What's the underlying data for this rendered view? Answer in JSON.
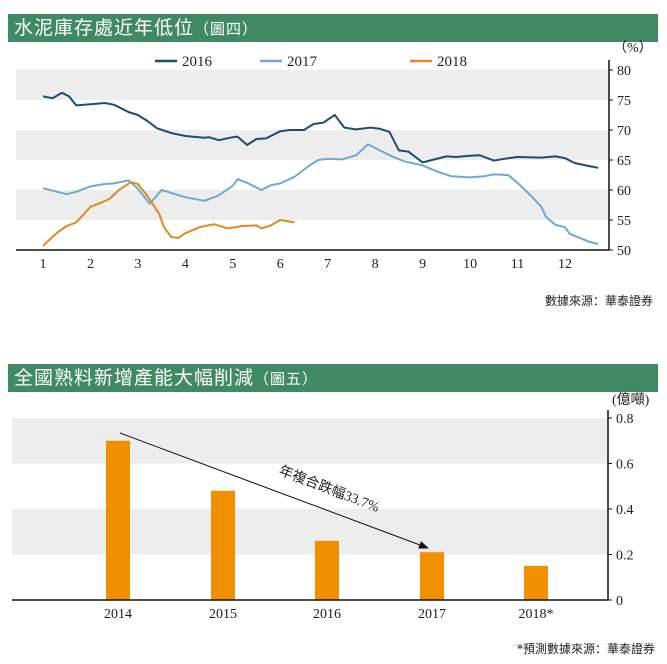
{
  "charts": {
    "inventory": {
      "title": "水泥庫存處近年低位",
      "figure_label": "圖四",
      "unit_label": "（%）",
      "source": "數據來源：華泰證券"
    },
    "capacity": {
      "title": "全國熟料新增產能大幅削減",
      "figure_label": "圖五",
      "unit_label": "(億噸)",
      "annotation": "年複合跌幅33.7%",
      "source": "*預測數據來源：華泰證券"
    }
  },
  "chart_data": [
    {
      "type": "line",
      "title": "水泥庫存處近年低位（圖四）",
      "xlabel": "",
      "ylabel": "（%）",
      "xlim": [
        0.45,
        12.9
      ],
      "ylim": [
        50,
        80
      ],
      "x_ticks": [
        1,
        2,
        3,
        4,
        5,
        6,
        7,
        8,
        9,
        10,
        11,
        12
      ],
      "y_ticks": [
        50,
        55,
        60,
        65,
        70,
        75,
        80
      ],
      "y_axis_side": "right",
      "legend_position": "top",
      "grid": "alternating horizontal bands",
      "series": [
        {
          "name": "2016",
          "color": "#1f4e6b",
          "points": [
            [
              1,
              75.6
            ],
            [
              1.2,
              75.3
            ],
            [
              1.4,
              76.2
            ],
            [
              1.55,
              75.6
            ],
            [
              1.7,
              74.1
            ],
            [
              2,
              74.3
            ],
            [
              2.3,
              74.5
            ],
            [
              2.5,
              74.2
            ],
            [
              2.8,
              73.0
            ],
            [
              3.0,
              72.5
            ],
            [
              3.2,
              71.5
            ],
            [
              3.4,
              70.3
            ],
            [
              3.7,
              69.5
            ],
            [
              4.0,
              69.0
            ],
            [
              4.4,
              68.7
            ],
            [
              4.5,
              68.8
            ],
            [
              4.7,
              68.3
            ],
            [
              5.0,
              68.8
            ],
            [
              5.1,
              68.9
            ],
            [
              5.3,
              67.5
            ],
            [
              5.5,
              68.5
            ],
            [
              5.7,
              68.6
            ],
            [
              6.0,
              69.8
            ],
            [
              6.2,
              70.0
            ],
            [
              6.5,
              70.0
            ],
            [
              6.7,
              71.0
            ],
            [
              6.9,
              71.2
            ],
            [
              7.15,
              72.5
            ],
            [
              7.35,
              70.4
            ],
            [
              7.6,
              70.1
            ],
            [
              7.9,
              70.4
            ],
            [
              8.1,
              70.2
            ],
            [
              8.3,
              69.7
            ],
            [
              8.5,
              66.6
            ],
            [
              8.7,
              66.4
            ],
            [
              9.0,
              64.6
            ],
            [
              9.2,
              65.0
            ],
            [
              9.5,
              65.6
            ],
            [
              9.7,
              65.5
            ],
            [
              10.0,
              65.7
            ],
            [
              10.2,
              65.8
            ],
            [
              10.5,
              64.9
            ],
            [
              10.8,
              65.3
            ],
            [
              11.0,
              65.5
            ],
            [
              11.5,
              65.4
            ],
            [
              11.8,
              65.6
            ],
            [
              12.0,
              65.3
            ],
            [
              12.2,
              64.5
            ],
            [
              12.5,
              64.0
            ],
            [
              12.7,
              63.7
            ]
          ]
        },
        {
          "name": "2017",
          "color": "#6fa9cc",
          "points": [
            [
              1,
              60.3
            ],
            [
              1.2,
              59.9
            ],
            [
              1.5,
              59.3
            ],
            [
              1.7,
              59.7
            ],
            [
              2.0,
              60.6
            ],
            [
              2.3,
              61.0
            ],
            [
              2.5,
              61.1
            ],
            [
              2.8,
              61.6
            ],
            [
              3.0,
              60.2
            ],
            [
              3.25,
              57.7
            ],
            [
              3.5,
              60.0
            ],
            [
              4.0,
              58.8
            ],
            [
              4.4,
              58.2
            ],
            [
              4.7,
              59.1
            ],
            [
              5.0,
              60.7
            ],
            [
              5.1,
              61.8
            ],
            [
              5.3,
              61.2
            ],
            [
              5.6,
              60.0
            ],
            [
              5.8,
              60.8
            ],
            [
              6.0,
              61.1
            ],
            [
              6.3,
              62.2
            ],
            [
              6.6,
              64.0
            ],
            [
              6.8,
              65.0
            ],
            [
              7.0,
              65.2
            ],
            [
              7.3,
              65.1
            ],
            [
              7.6,
              65.8
            ],
            [
              7.85,
              67.6
            ],
            [
              8.0,
              67.0
            ],
            [
              8.3,
              65.8
            ],
            [
              8.6,
              64.8
            ],
            [
              9.0,
              64.1
            ],
            [
              9.3,
              63.1
            ],
            [
              9.6,
              62.3
            ],
            [
              10.0,
              62.1
            ],
            [
              10.3,
              62.3
            ],
            [
              10.5,
              62.6
            ],
            [
              10.8,
              62.5
            ],
            [
              11.0,
              61.2
            ],
            [
              11.3,
              58.9
            ],
            [
              11.5,
              57.2
            ],
            [
              11.6,
              55.5
            ],
            [
              11.8,
              54.2
            ],
            [
              12.0,
              53.8
            ],
            [
              12.1,
              52.7
            ],
            [
              12.5,
              51.4
            ],
            [
              12.7,
              51.0
            ]
          ]
        },
        {
          "name": "2018",
          "color": "#e08a1e",
          "points": [
            [
              1,
              50.7
            ],
            [
              1.3,
              52.9
            ],
            [
              1.5,
              54.0
            ],
            [
              1.7,
              54.6
            ],
            [
              2.0,
              57.2
            ],
            [
              2.2,
              57.8
            ],
            [
              2.4,
              58.5
            ],
            [
              2.6,
              60.0
            ],
            [
              2.85,
              61.3
            ],
            [
              3.0,
              61.0
            ],
            [
              3.2,
              59.0
            ],
            [
              3.45,
              56.0
            ],
            [
              3.55,
              53.8
            ],
            [
              3.7,
              52.2
            ],
            [
              3.85,
              52.0
            ],
            [
              4.0,
              52.8
            ],
            [
              4.3,
              53.8
            ],
            [
              4.6,
              54.3
            ],
            [
              4.9,
              53.6
            ],
            [
              5.2,
              54.0
            ],
            [
              5.5,
              54.1
            ],
            [
              5.6,
              53.6
            ],
            [
              5.8,
              54.1
            ],
            [
              6.0,
              55.0
            ],
            [
              6.3,
              54.6
            ]
          ]
        }
      ]
    },
    {
      "type": "bar",
      "title": "全國熟料新增產能大幅削減（圖五）",
      "xlabel": "",
      "ylabel": "(億噸)",
      "categories": [
        "2014",
        "2015",
        "2016",
        "2017",
        "2018*"
      ],
      "values": [
        0.7,
        0.48,
        0.26,
        0.21,
        0.15
      ],
      "color": "#f08f00",
      "ylim": [
        0,
        0.8
      ],
      "y_ticks": [
        "0",
        "0.2",
        "0.4",
        "0.6",
        "0.8"
      ],
      "y_axis_side": "right",
      "grid": "alternating horizontal bands",
      "annotation": {
        "text": "年複合跌幅33.7%",
        "type": "arrow",
        "from": "2014",
        "to": "2017"
      }
    }
  ]
}
